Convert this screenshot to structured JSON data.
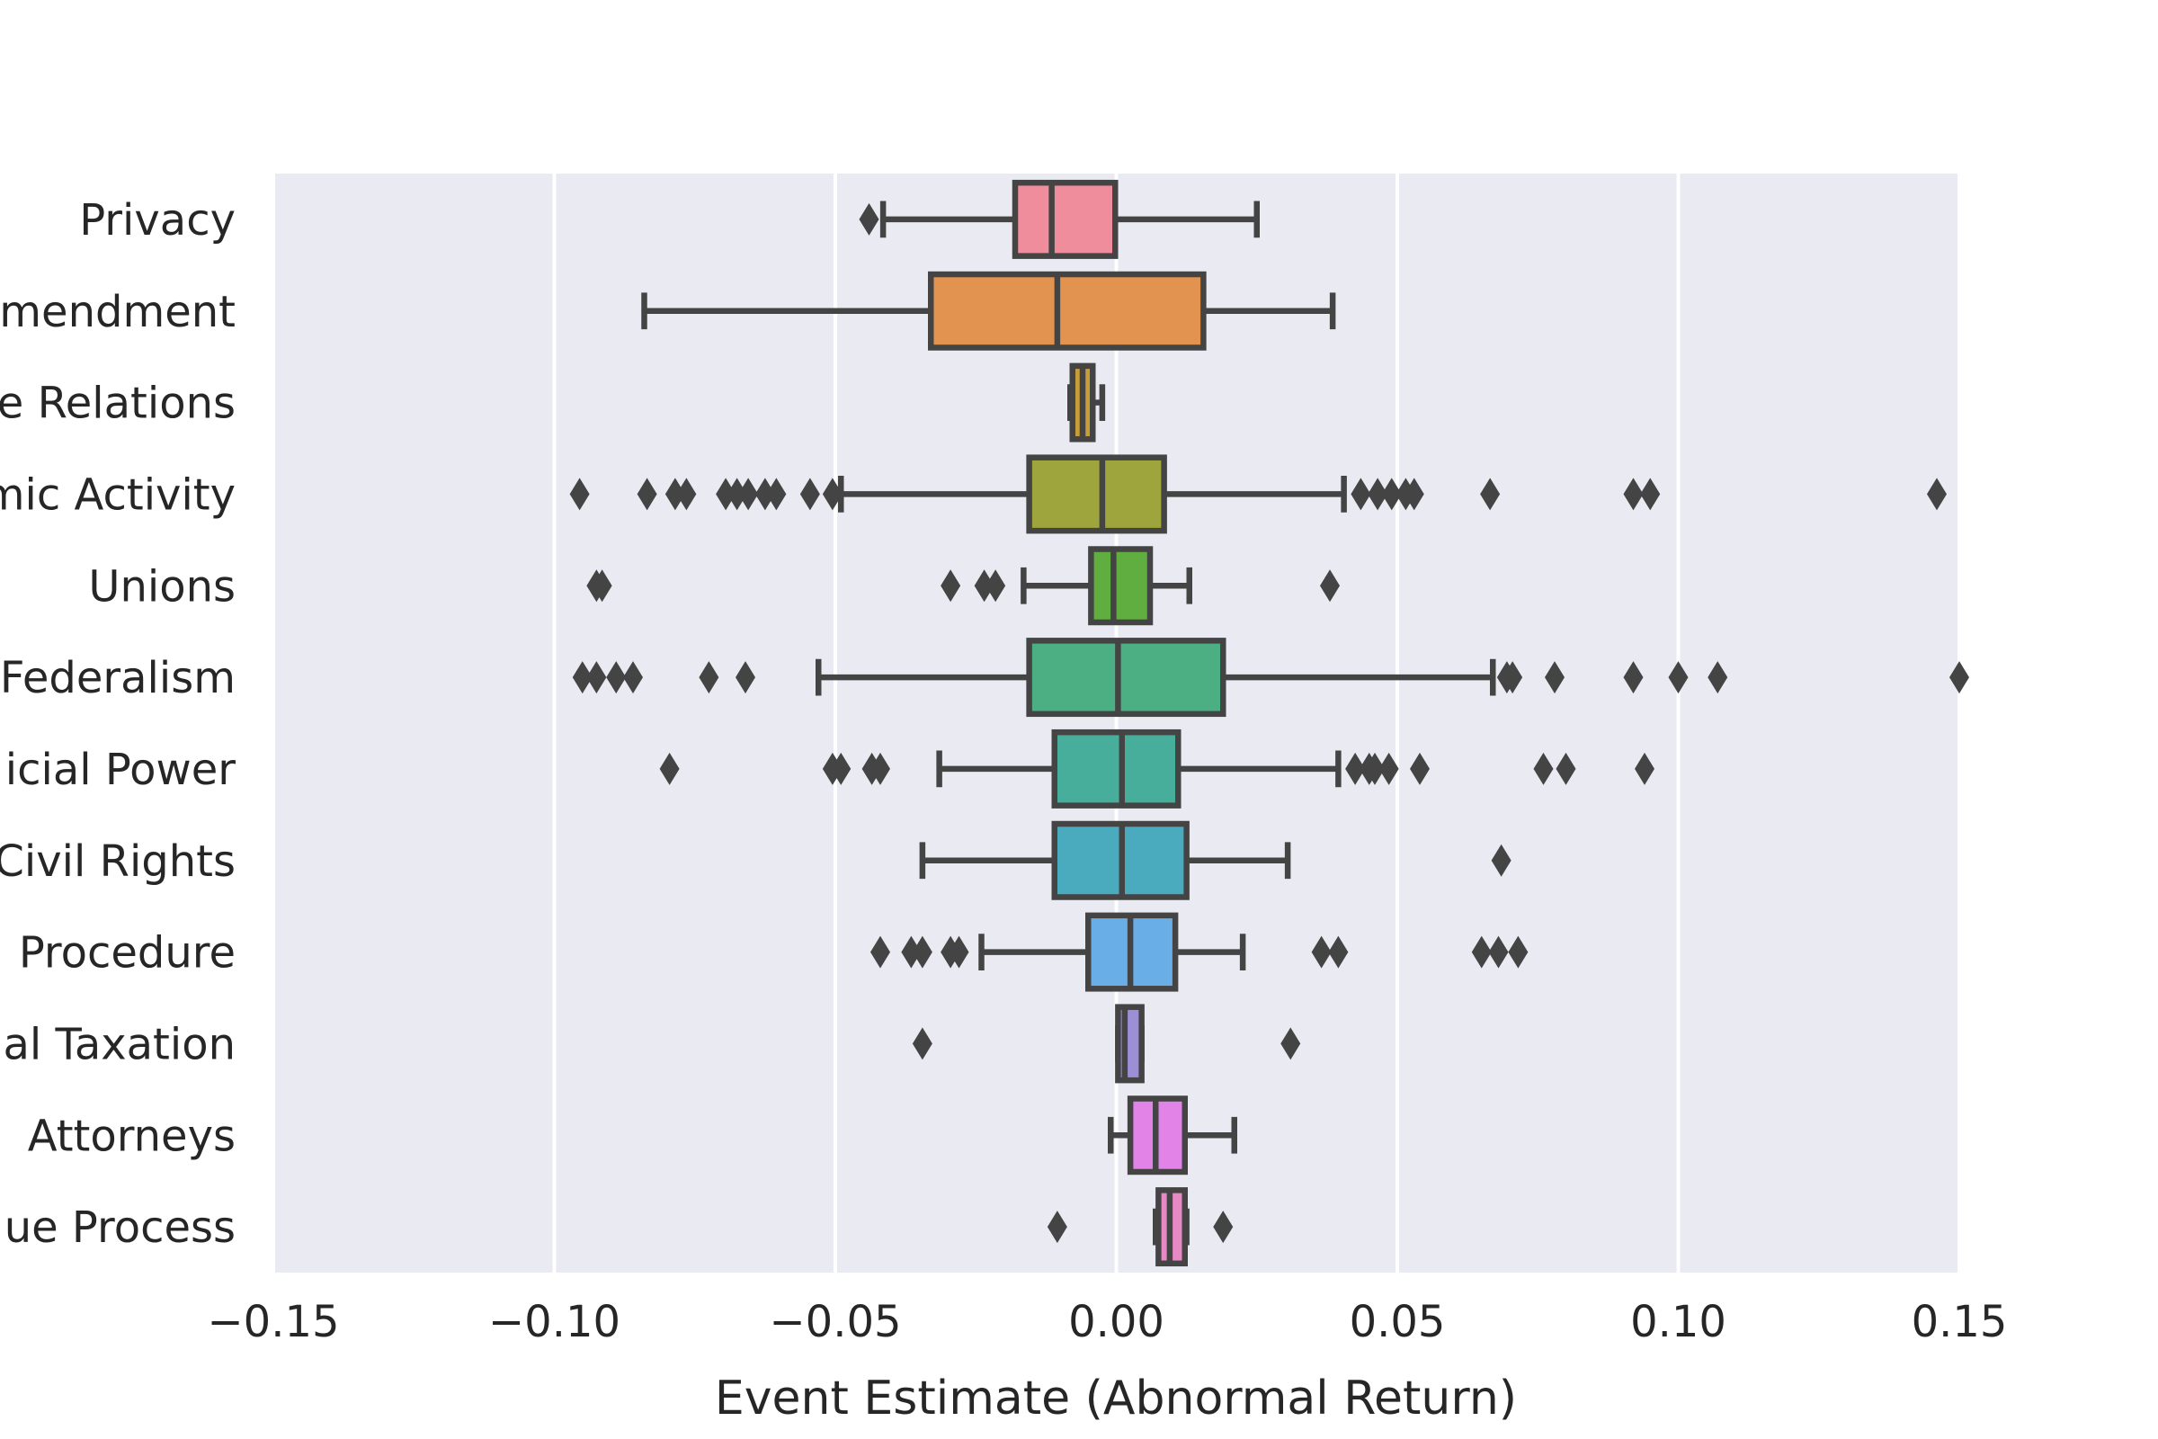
{
  "chart_data": {
    "type": "boxplot",
    "orientation": "horizontal",
    "xlabel": "Event Estimate (Abnormal Return)",
    "ylabel": "",
    "xlim": [
      -0.15,
      0.15
    ],
    "xticks": [
      {
        "value": -0.15,
        "label": "−0.15"
      },
      {
        "value": -0.1,
        "label": "−0.10"
      },
      {
        "value": -0.05,
        "label": "−0.05"
      },
      {
        "value": 0.0,
        "label": "0.00"
      },
      {
        "value": 0.05,
        "label": "0.05"
      },
      {
        "value": 0.1,
        "label": "0.10"
      },
      {
        "value": 0.15,
        "label": "0.15"
      }
    ],
    "grid": true,
    "categories": [
      {
        "label": "Privacy",
        "color": "#f08d9c",
        "whisker_low": -0.0415,
        "q1": -0.018,
        "median": -0.0115,
        "q3": -0.0002,
        "whisker_high": 0.025,
        "outliers": [
          -0.044
        ]
      },
      {
        "label": "mendment",
        "color": "#e39350",
        "whisker_low": -0.084,
        "q1": -0.033,
        "median": -0.0105,
        "q3": 0.0155,
        "whisker_high": 0.0385,
        "outliers": []
      },
      {
        "label": "e Relations",
        "color": "#c79c3a",
        "whisker_low": -0.0082,
        "q1": -0.0078,
        "median": -0.006,
        "q3": -0.0042,
        "whisker_high": -0.0025,
        "outliers": []
      },
      {
        "label": "mic Activity",
        "color": "#9ea53d",
        "whisker_low": -0.049,
        "q1": -0.0155,
        "median": -0.0025,
        "q3": 0.0085,
        "whisker_high": 0.0405,
        "outliers": [
          -0.0955,
          -0.0835,
          -0.0785,
          -0.0765,
          -0.0695,
          -0.0675,
          -0.0655,
          -0.0625,
          -0.0605,
          -0.0545,
          -0.0505,
          0.0435,
          0.0465,
          0.049,
          0.0515,
          0.053,
          0.0665,
          0.092,
          0.095,
          0.146
        ]
      },
      {
        "label": "Unions",
        "color": "#5fae3f",
        "whisker_low": -0.0165,
        "q1": -0.0045,
        "median": -0.0005,
        "q3": 0.006,
        "whisker_high": 0.013,
        "outliers": [
          -0.0925,
          -0.0915,
          -0.0295,
          -0.0235,
          -0.0215,
          0.038
        ]
      },
      {
        "label": "Federalism",
        "color": "#4caf84",
        "whisker_low": -0.053,
        "q1": -0.0155,
        "median": 0.0003,
        "q3": 0.019,
        "whisker_high": 0.067,
        "outliers": [
          -0.095,
          -0.0925,
          -0.089,
          -0.086,
          -0.0725,
          -0.066,
          0.0695,
          0.0705,
          0.078,
          0.092,
          0.1,
          0.107,
          0.15
        ]
      },
      {
        "label": "icial Power",
        "color": "#48ae9c",
        "whisker_low": -0.0315,
        "q1": -0.011,
        "median": 0.001,
        "q3": 0.011,
        "whisker_high": 0.0395,
        "outliers": [
          -0.0795,
          -0.0505,
          -0.049,
          -0.0435,
          -0.042,
          0.0425,
          0.045,
          0.046,
          0.0485,
          0.054,
          0.076,
          0.08,
          0.094
        ]
      },
      {
        "label": "Civil Rights",
        "color": "#4aabbf",
        "whisker_low": -0.0345,
        "q1": -0.011,
        "median": 0.001,
        "q3": 0.0125,
        "whisker_high": 0.0305,
        "outliers": [
          0.0685
        ]
      },
      {
        "label": " Procedure",
        "color": "#6aaee7",
        "whisker_low": -0.024,
        "q1": -0.005,
        "median": 0.0025,
        "q3": 0.0105,
        "whisker_high": 0.0225,
        "outliers": [
          -0.042,
          -0.0365,
          -0.0345,
          -0.0295,
          -0.028,
          0.0365,
          0.0395,
          0.065,
          0.068,
          0.0715
        ]
      },
      {
        "label": "al Taxation",
        "color": "#9d8ed8",
        "whisker_low": 0.0003,
        "q1": 0.0003,
        "median": 0.0015,
        "q3": 0.0045,
        "whisker_high": 0.0045,
        "outliers": [
          -0.0345,
          0.031
        ]
      },
      {
        "label": "Attorneys",
        "color": "#e283e8",
        "whisker_low": -0.001,
        "q1": 0.0025,
        "median": 0.007,
        "q3": 0.0122,
        "whisker_high": 0.021,
        "outliers": []
      },
      {
        "label": "ue Process",
        "color": "#e789c5",
        "whisker_low": 0.007,
        "q1": 0.0075,
        "median": 0.0095,
        "q3": 0.0122,
        "whisker_high": 0.0125,
        "outliers": [
          -0.0105,
          0.019
        ]
      }
    ]
  }
}
